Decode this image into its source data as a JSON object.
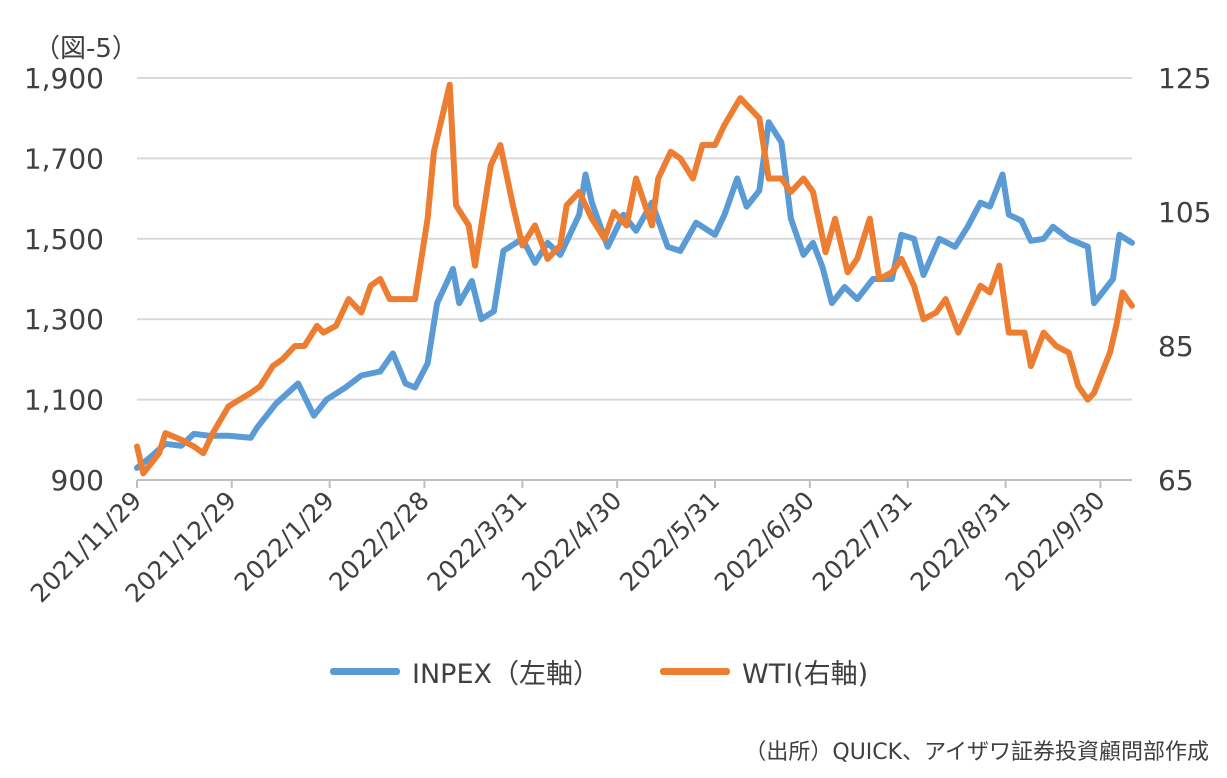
{
  "figure_label": "（図-5）",
  "source_note": "（出所）QUICK、アイザワ証券投資顧問部作成",
  "legend": [
    {
      "label": "INPEX（左軸）",
      "color": "#5B9BD5"
    },
    {
      "label": "WTI(右軸)",
      "color": "#ED7D31"
    }
  ],
  "chart_data": {
    "type": "line",
    "title": "",
    "grid": true,
    "legend_placement": "bottom",
    "x_tick_labels": [
      "2021/11/29",
      "2021/12/29",
      "2022/1/29",
      "2022/2/28",
      "2022/3/31",
      "2022/4/30",
      "2022/5/31",
      "2022/6/30",
      "2022/7/31",
      "2022/8/31",
      "2022/9/30"
    ],
    "x_range": [
      "2021/11/29",
      "2022/10/10"
    ],
    "y_left": {
      "ticks": [
        "900",
        "1,100",
        "1,300",
        "1,500",
        "1,700",
        "1,900"
      ],
      "ylim": [
        900,
        1900
      ]
    },
    "y_right": {
      "ticks": [
        "65",
        "85",
        "105",
        "125"
      ],
      "ylim": [
        65,
        125
      ]
    },
    "series": [
      {
        "name": "INPEX（左軸）",
        "axis": "left",
        "color": "#5B9BD5",
        "points": [
          [
            "2021/11/29",
            930
          ],
          [
            "2021/12/03",
            955
          ],
          [
            "2021/12/08",
            990
          ],
          [
            "2021/12/13",
            985
          ],
          [
            "2021/12/17",
            1015
          ],
          [
            "2021/12/22",
            1010
          ],
          [
            "2021/12/28",
            1010
          ],
          [
            "2022/1/04",
            1005
          ],
          [
            "2022/1/06",
            1030
          ],
          [
            "2022/1/12",
            1090
          ],
          [
            "2022/1/19",
            1140
          ],
          [
            "2022/1/24",
            1060
          ],
          [
            "2022/1/28",
            1100
          ],
          [
            "2022/2/03",
            1130
          ],
          [
            "2022/2/08",
            1160
          ],
          [
            "2022/2/14",
            1170
          ],
          [
            "2022/2/18",
            1215
          ],
          [
            "2022/2/22",
            1140
          ],
          [
            "2022/2/25",
            1130
          ],
          [
            "2022/3/01",
            1190
          ],
          [
            "2022/3/04",
            1340
          ],
          [
            "2022/3/07",
            1390
          ],
          [
            "2022/3/09",
            1425
          ],
          [
            "2022/3/11",
            1340
          ],
          [
            "2022/3/15",
            1395
          ],
          [
            "2022/3/18",
            1300
          ],
          [
            "2022/3/22",
            1320
          ],
          [
            "2022/3/25",
            1470
          ],
          [
            "2022/3/31",
            1500
          ],
          [
            "2022/4/04",
            1440
          ],
          [
            "2022/4/08",
            1490
          ],
          [
            "2022/4/12",
            1460
          ],
          [
            "2022/4/18",
            1560
          ],
          [
            "2022/4/20",
            1660
          ],
          [
            "2022/4/22",
            1590
          ],
          [
            "2022/4/27",
            1480
          ],
          [
            "2022/5/02",
            1560
          ],
          [
            "2022/5/06",
            1520
          ],
          [
            "2022/5/11",
            1590
          ],
          [
            "2022/5/16",
            1480
          ],
          [
            "2022/5/20",
            1470
          ],
          [
            "2022/5/25",
            1540
          ],
          [
            "2022/5/31",
            1510
          ],
          [
            "2022/6/03",
            1560
          ],
          [
            "2022/6/07",
            1650
          ],
          [
            "2022/6/10",
            1580
          ],
          [
            "2022/6/14",
            1620
          ],
          [
            "2022/6/17",
            1790
          ],
          [
            "2022/6/21",
            1740
          ],
          [
            "2022/6/24",
            1550
          ],
          [
            "2022/6/28",
            1460
          ],
          [
            "2022/7/01",
            1490
          ],
          [
            "2022/7/04",
            1430
          ],
          [
            "2022/7/07",
            1340
          ],
          [
            "2022/7/11",
            1380
          ],
          [
            "2022/7/15",
            1350
          ],
          [
            "2022/7/20",
            1400
          ],
          [
            "2022/7/26",
            1400
          ],
          [
            "2022/7/29",
            1510
          ],
          [
            "2022/8/02",
            1500
          ],
          [
            "2022/8/05",
            1410
          ],
          [
            "2022/8/10",
            1500
          ],
          [
            "2022/8/15",
            1480
          ],
          [
            "2022/8/19",
            1530
          ],
          [
            "2022/8/23",
            1590
          ],
          [
            "2022/8/26",
            1580
          ],
          [
            "2022/8/30",
            1660
          ],
          [
            "2022/9/01",
            1560
          ],
          [
            "2022/9/05",
            1545
          ],
          [
            "2022/9/08",
            1495
          ],
          [
            "2022/9/12",
            1500
          ],
          [
            "2022/9/15",
            1530
          ],
          [
            "2022/9/20",
            1500
          ],
          [
            "2022/9/26",
            1480
          ],
          [
            "2022/9/28",
            1340
          ],
          [
            "2022/9/30",
            1360
          ],
          [
            "2022/10/04",
            1400
          ],
          [
            "2022/10/06",
            1510
          ],
          [
            "2022/10/10",
            1490
          ]
        ]
      },
      {
        "name": "WTI(右軸)",
        "axis": "right",
        "color": "#ED7D31",
        "points": [
          [
            "2021/11/29",
            70
          ],
          [
            "2021/12/01",
            66
          ],
          [
            "2021/12/06",
            69
          ],
          [
            "2021/12/08",
            72
          ],
          [
            "2021/12/13",
            71
          ],
          [
            "2021/12/17",
            70
          ],
          [
            "2021/12/20",
            69
          ],
          [
            "2021/12/23",
            72
          ],
          [
            "2021/12/28",
            76
          ],
          [
            "2022/1/04",
            78
          ],
          [
            "2022/1/07",
            79
          ],
          [
            "2022/1/11",
            82
          ],
          [
            "2022/1/14",
            83
          ],
          [
            "2022/1/18",
            85
          ],
          [
            "2022/1/21",
            85
          ],
          [
            "2022/1/25",
            88
          ],
          [
            "2022/1/27",
            87
          ],
          [
            "2022/1/31",
            88
          ],
          [
            "2022/2/04",
            92
          ],
          [
            "2022/2/08",
            90
          ],
          [
            "2022/2/11",
            94
          ],
          [
            "2022/2/14",
            95
          ],
          [
            "2022/2/17",
            92
          ],
          [
            "2022/2/22",
            92
          ],
          [
            "2022/2/25",
            92
          ],
          [
            "2022/3/01",
            104
          ],
          [
            "2022/3/03",
            114
          ],
          [
            "2022/3/08",
            124
          ],
          [
            "2022/3/10",
            106
          ],
          [
            "2022/3/14",
            103
          ],
          [
            "2022/3/16",
            97
          ],
          [
            "2022/3/21",
            112
          ],
          [
            "2022/3/24",
            115
          ],
          [
            "2022/3/28",
            106
          ],
          [
            "2022/3/31",
            100
          ],
          [
            "2022/4/04",
            103
          ],
          [
            "2022/4/08",
            98
          ],
          [
            "2022/4/12",
            100
          ],
          [
            "2022/4/14",
            106
          ],
          [
            "2022/4/18",
            108
          ],
          [
            "2022/4/22",
            104
          ],
          [
            "2022/4/26",
            101
          ],
          [
            "2022/4/29",
            105
          ],
          [
            "2022/5/03",
            103
          ],
          [
            "2022/5/06",
            110
          ],
          [
            "2022/5/11",
            103
          ],
          [
            "2022/5/13",
            110
          ],
          [
            "2022/5/17",
            114
          ],
          [
            "2022/5/20",
            113
          ],
          [
            "2022/5/24",
            110
          ],
          [
            "2022/5/27",
            115
          ],
          [
            "2022/5/31",
            115
          ],
          [
            "2022/6/03",
            118
          ],
          [
            "2022/6/08",
            122
          ],
          [
            "2022/6/10",
            121
          ],
          [
            "2022/6/14",
            119
          ],
          [
            "2022/6/17",
            110
          ],
          [
            "2022/6/21",
            110
          ],
          [
            "2022/6/24",
            108
          ],
          [
            "2022/6/28",
            110
          ],
          [
            "2022/7/01",
            108
          ],
          [
            "2022/7/05",
            99
          ],
          [
            "2022/7/08",
            104
          ],
          [
            "2022/7/12",
            96
          ],
          [
            "2022/7/15",
            98
          ],
          [
            "2022/7/19",
            104
          ],
          [
            "2022/7/22",
            95
          ],
          [
            "2022/7/26",
            96
          ],
          [
            "2022/7/29",
            98
          ],
          [
            "2022/8/02",
            94
          ],
          [
            "2022/8/05",
            89
          ],
          [
            "2022/8/09",
            90
          ],
          [
            "2022/8/12",
            92
          ],
          [
            "2022/8/16",
            87
          ],
          [
            "2022/8/19",
            90
          ],
          [
            "2022/8/23",
            94
          ],
          [
            "2022/8/26",
            93
          ],
          [
            "2022/8/29",
            97
          ],
          [
            "2022/9/01",
            87
          ],
          [
            "2022/9/06",
            87
          ],
          [
            "2022/9/08",
            82
          ],
          [
            "2022/9/12",
            87
          ],
          [
            "2022/9/16",
            85
          ],
          [
            "2022/9/20",
            84
          ],
          [
            "2022/9/23",
            79
          ],
          [
            "2022/9/26",
            77
          ],
          [
            "2022/9/28",
            78
          ],
          [
            "2022/10/03",
            84
          ],
          [
            "2022/10/05",
            88
          ],
          [
            "2022/10/07",
            93
          ],
          [
            "2022/10/10",
            91
          ]
        ]
      }
    ]
  }
}
